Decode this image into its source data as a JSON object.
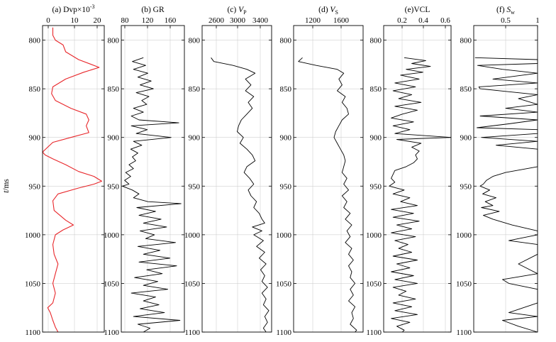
{
  "figure": {
    "y_axis_label_var": "t",
    "y_axis_label_unit": "/ms",
    "colors": {
      "dvp": "#e8262a",
      "logs": "#000000",
      "grid": "#d0d0d0",
      "frame": "#000000"
    }
  },
  "chart_data": [
    {
      "type": "line",
      "title": "(a) Dvp×10",
      "title_sup": "-3",
      "xticks": [
        "0",
        "10",
        "20"
      ],
      "xlim": [
        -4,
        20
      ],
      "ylim": [
        1100,
        785
      ],
      "yticks": [
        "800",
        "850",
        "900",
        "950",
        "1000",
        "1050",
        "1100"
      ],
      "grid": true,
      "series": [
        {
          "color": "#e8262a",
          "y": [
            787,
            795,
            800,
            805,
            812,
            820,
            828,
            833,
            840,
            848,
            855,
            862,
            870,
            876,
            882,
            888,
            895,
            900,
            905,
            910,
            915,
            918,
            922,
            928,
            935,
            940,
            945,
            948,
            952,
            958,
            965,
            975,
            985,
            990,
            995,
            1000,
            1010,
            1020,
            1030,
            1040,
            1050,
            1060,
            1070,
            1075,
            1080,
            1088,
            1095,
            1100
          ],
          "x": [
            0,
            0,
            1,
            4,
            5,
            10,
            18,
            12,
            5,
            0,
            -0.5,
            1,
            7,
            13,
            14,
            13,
            14,
            7,
            0,
            -2,
            -4,
            -3,
            0,
            5,
            10,
            16,
            19,
            16,
            10,
            2,
            0,
            0.5,
            5,
            8,
            4,
            1,
            0,
            0.5,
            2,
            1,
            0,
            1,
            0,
            -2,
            -1,
            0,
            1,
            2
          ]
        }
      ]
    },
    {
      "type": "line",
      "title": "(b) GR",
      "xticks": [
        "80",
        "120",
        "160"
      ],
      "xlim": [
        78,
        192
      ],
      "ylim": [
        1100,
        785
      ],
      "yticks": [
        "800",
        "850",
        "900",
        "950",
        "1000",
        "1050",
        "1100"
      ],
      "grid": true,
      "series": [
        {
          "color": "#000000",
          "y": [
            818,
            822,
            826,
            830,
            834,
            838,
            842,
            846,
            850,
            854,
            858,
            862,
            866,
            870,
            874,
            878,
            882,
            885,
            888,
            892,
            896,
            900,
            904,
            908,
            912,
            916,
            920,
            924,
            928,
            932,
            936,
            940,
            944,
            948,
            950,
            954,
            958,
            962,
            966,
            968,
            972,
            976,
            980,
            984,
            988,
            992,
            996,
            1000,
            1004,
            1008,
            1012,
            1016,
            1020,
            1024,
            1028,
            1032,
            1036,
            1040,
            1044,
            1048,
            1052,
            1056,
            1060,
            1064,
            1068,
            1072,
            1076,
            1080,
            1084,
            1088,
            1092,
            1096,
            1100
          ],
          "x": [
            118,
            98,
            122,
            100,
            126,
            108,
            132,
            112,
            136,
            105,
            128,
            115,
            124,
            100,
            118,
            96,
            110,
            182,
            96,
            125,
            105,
            168,
            100,
            115,
            95,
            108,
            98,
            104,
            92,
            100,
            86,
            95,
            84,
            92,
            80,
            98,
            110,
            100,
            126,
            186,
            106,
            140,
            110,
            150,
            118,
            160,
            112,
            138,
            122,
            176,
            108,
            148,
            118,
            166,
            110,
            178,
            124,
            152,
            102,
            144,
            118,
            162,
            96,
            140,
            118,
            146,
            112,
            156,
            100,
            184,
            108,
            130,
            118
          ]
        }
      ]
    },
    {
      "type": "line",
      "title": "(c) V",
      "title_sub": "P",
      "xticks": [
        "2600",
        "3000",
        "3400"
      ],
      "xlim": [
        2550,
        3560
      ],
      "ylim": [
        1100,
        785
      ],
      "yticks": [
        "800",
        "850",
        "900",
        "950",
        "1000",
        "1050",
        "1100"
      ],
      "grid": true,
      "series": [
        {
          "color": "#000000",
          "y": [
            818,
            822,
            826,
            830,
            834,
            840,
            846,
            852,
            858,
            864,
            870,
            876,
            882,
            888,
            894,
            900,
            906,
            912,
            918,
            924,
            930,
            936,
            942,
            948,
            954,
            960,
            966,
            972,
            978,
            984,
            988,
            992,
            996,
            1000,
            1006,
            1012,
            1018,
            1024,
            1030,
            1036,
            1042,
            1048,
            1054,
            1060,
            1066,
            1072,
            1078,
            1084,
            1090,
            1096,
            1100
          ],
          "x": [
            2680,
            2720,
            3000,
            3200,
            3320,
            3180,
            3260,
            3180,
            3300,
            3220,
            3280,
            3200,
            3120,
            3080,
            3060,
            3150,
            3100,
            3200,
            3280,
            3320,
            3200,
            3160,
            3240,
            3300,
            3220,
            3260,
            3340,
            3300,
            3380,
            3420,
            3460,
            3280,
            3420,
            3300,
            3440,
            3340,
            3460,
            3380,
            3480,
            3400,
            3460,
            3420,
            3500,
            3420,
            3480,
            3440,
            3520,
            3460,
            3500,
            3440,
            3480
          ]
        }
      ]
    },
    {
      "type": "line",
      "title": "(d) V",
      "title_sub": "S",
      "xticks": [
        "1200",
        "1600"
      ],
      "xlim": [
        1020,
        1880
      ],
      "ylim": [
        1100,
        785
      ],
      "yticks": [
        "800",
        "850",
        "900",
        "950",
        "1000",
        "1050",
        "1100"
      ],
      "grid": true,
      "series": [
        {
          "color": "#000000",
          "y": [
            818,
            822,
            826,
            830,
            834,
            840,
            846,
            852,
            858,
            864,
            870,
            876,
            882,
            888,
            894,
            900,
            906,
            912,
            918,
            924,
            930,
            936,
            942,
            948,
            954,
            960,
            966,
            972,
            978,
            984,
            990,
            996,
            1002,
            1008,
            1014,
            1020,
            1026,
            1032,
            1038,
            1044,
            1050,
            1056,
            1062,
            1068,
            1074,
            1080,
            1086,
            1092,
            1098,
            1100
          ],
          "x": [
            1130,
            1080,
            1300,
            1560,
            1640,
            1580,
            1620,
            1560,
            1660,
            1620,
            1680,
            1700,
            1620,
            1580,
            1540,
            1520,
            1560,
            1600,
            1640,
            1660,
            1640,
            1620,
            1680,
            1640,
            1700,
            1620,
            1680,
            1640,
            1720,
            1660,
            1740,
            1680,
            1720,
            1660,
            1740,
            1700,
            1760,
            1700,
            1740,
            1720,
            1780,
            1720,
            1760,
            1700,
            1780,
            1740,
            1760,
            1720,
            1800,
            1780
          ]
        }
      ]
    },
    {
      "type": "line",
      "title": "(e)VCL",
      "xticks": [
        "0.2",
        "0.4",
        "0.6"
      ],
      "xlim": [
        0.0,
        0.72
      ],
      "ylim": [
        1100,
        785
      ],
      "yticks": [
        "800",
        "850",
        "900",
        "950",
        "1000",
        "1050",
        "1100"
      ],
      "grid": true,
      "series": [
        {
          "color": "#000000",
          "y": [
            818,
            821,
            824,
            827,
            830,
            833,
            836,
            840,
            844,
            848,
            852,
            856,
            860,
            864,
            868,
            872,
            876,
            880,
            884,
            888,
            892,
            896,
            900,
            902,
            906,
            910,
            914,
            918,
            922,
            926,
            930,
            934,
            938,
            942,
            946,
            950,
            954,
            958,
            962,
            966,
            970,
            974,
            978,
            982,
            986,
            990,
            994,
            998,
            1002,
            1006,
            1010,
            1014,
            1018,
            1022,
            1026,
            1030,
            1034,
            1038,
            1042,
            1046,
            1050,
            1054,
            1058,
            1062,
            1066,
            1070,
            1074,
            1078,
            1082,
            1086,
            1090,
            1094,
            1098,
            1100
          ],
          "x": [
            0.22,
            0.45,
            0.3,
            0.5,
            0.24,
            0.42,
            0.18,
            0.38,
            0.12,
            0.34,
            0.1,
            0.3,
            0.16,
            0.4,
            0.12,
            0.36,
            0.2,
            0.08,
            0.32,
            0.1,
            0.28,
            0.12,
            0.72,
            0.14,
            0.4,
            0.3,
            0.38,
            0.34,
            0.36,
            0.32,
            0.24,
            0.12,
            0.1,
            0.08,
            0.12,
            0.06,
            0.22,
            0.1,
            0.28,
            0.18,
            0.36,
            0.08,
            0.32,
            0.1,
            0.38,
            0.14,
            0.3,
            0.08,
            0.34,
            0.12,
            0.26,
            0.16,
            0.3,
            0.1,
            0.36,
            0.14,
            0.28,
            0.08,
            0.32,
            0.12,
            0.36,
            0.1,
            0.24,
            0.16,
            0.34,
            0.1,
            0.3,
            0.12,
            0.36,
            0.08,
            0.28,
            0.14,
            0.22,
            0.2
          ]
        }
      ]
    },
    {
      "type": "line",
      "title": "(f) S",
      "title_sub": "w",
      "xticks": [
        "0.5",
        "1"
      ],
      "xlim": [
        0.0,
        1.0
      ],
      "ylim": [
        1100,
        785
      ],
      "yticks": [
        "800",
        "850",
        "900",
        "950",
        "1000",
        "1050",
        "1100"
      ],
      "grid": true,
      "series": [
        {
          "color": "#000000",
          "y": [
            818,
            820,
            824,
            826,
            830,
            834,
            840,
            844,
            848,
            850,
            856,
            860,
            866,
            870,
            874,
            878,
            882,
            886,
            890,
            892,
            896,
            900,
            904,
            908,
            912,
            918,
            924,
            930,
            936,
            940,
            944,
            948,
            950,
            954,
            958,
            962,
            966,
            970,
            972,
            976,
            980,
            984,
            990,
            996,
            1000,
            1006,
            1010,
            1016,
            1020,
            1030,
            1040,
            1046,
            1050,
            1056,
            1060,
            1070,
            1080,
            1084,
            1088,
            1094,
            1100
          ],
          "x": [
            0.02,
            1.0,
            1.0,
            0.06,
            0.45,
            1.0,
            0.3,
            1.0,
            0.08,
            0.1,
            1.0,
            0.7,
            1.0,
            0.5,
            1.0,
            0.1,
            1.0,
            0.55,
            0.05,
            1.0,
            1.0,
            0.12,
            1.0,
            0.35,
            1.0,
            1.0,
            1.0,
            1.0,
            0.5,
            0.3,
            0.2,
            0.15,
            0.1,
            0.25,
            0.14,
            0.35,
            0.18,
            0.3,
            0.12,
            0.4,
            0.15,
            0.3,
            0.6,
            1.0,
            1.0,
            0.55,
            1.0,
            1.0,
            1.0,
            0.7,
            1.0,
            0.45,
            0.55,
            1.0,
            1.0,
            1.0,
            0.55,
            1.0,
            0.45,
            0.7,
            1.0
          ]
        }
      ]
    }
  ]
}
